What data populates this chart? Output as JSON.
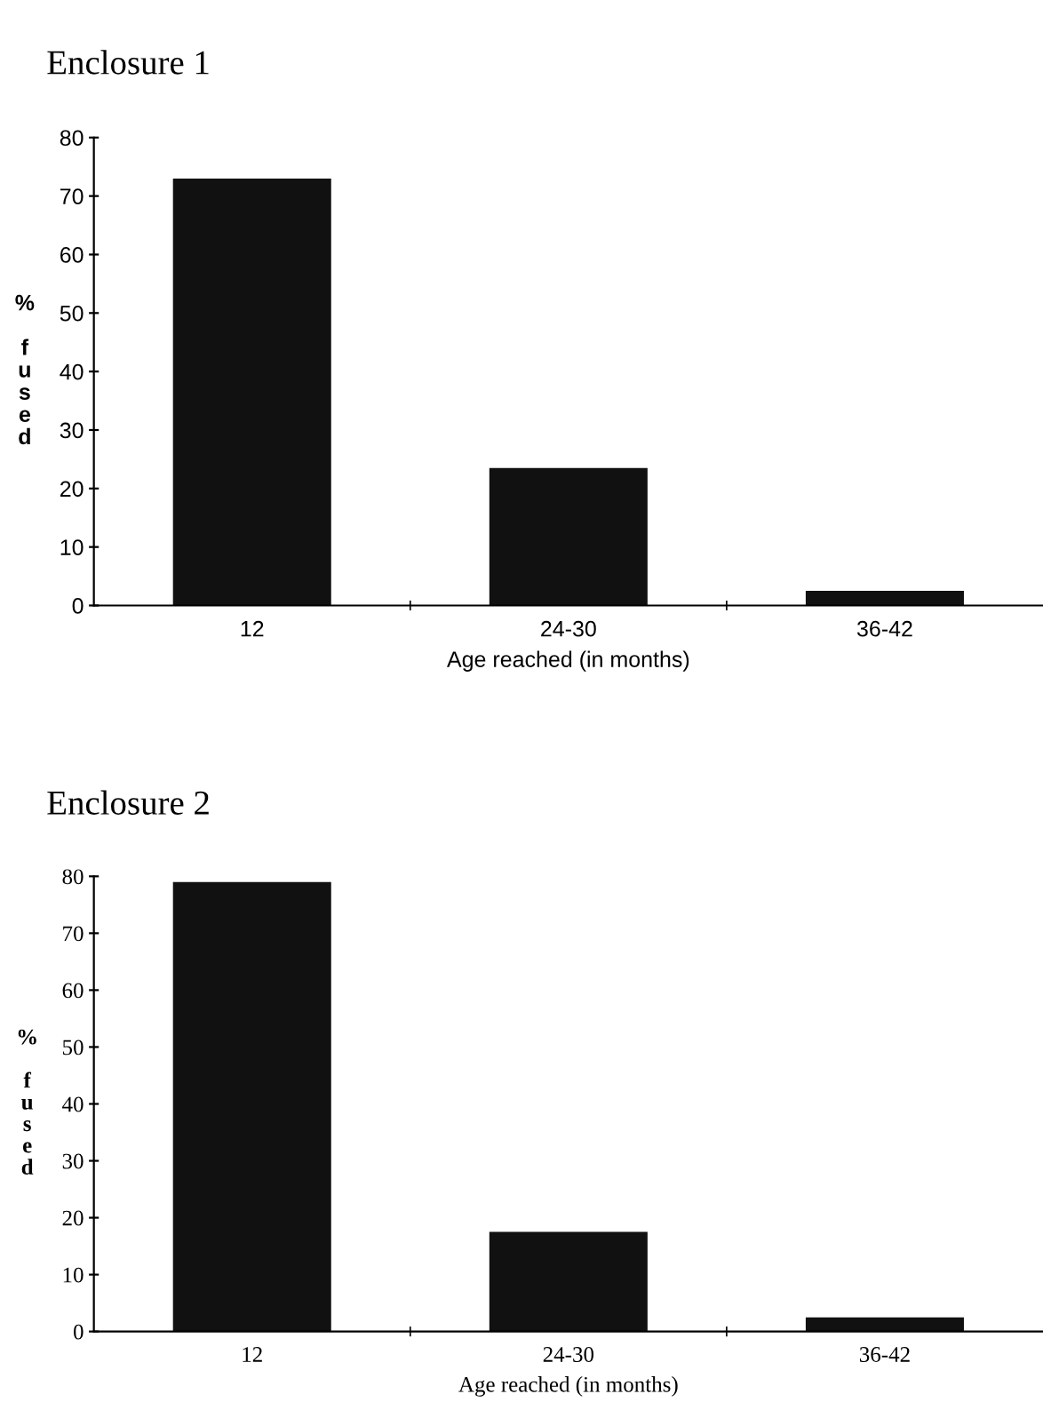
{
  "chart_data": [
    {
      "type": "bar",
      "title": "Enclosure 1",
      "xlabel": "Age reached (in months)",
      "ylabel": "% fused",
      "categories": [
        "12",
        "24-30",
        "36-42"
      ],
      "values": [
        73,
        23.5,
        2.5
      ],
      "color": "#111111",
      "ylim": [
        0,
        80
      ],
      "yticks": [
        0,
        10,
        20,
        30,
        40,
        50,
        60,
        70,
        80
      ],
      "grid": false
    },
    {
      "type": "bar",
      "title": "Enclosure 2",
      "xlabel": "Age reached (in months)",
      "ylabel": "% fused",
      "categories": [
        "12",
        "24-30",
        "36-42"
      ],
      "values": [
        79,
        17.5,
        2.5
      ],
      "color": "#111111",
      "ylim": [
        0,
        80
      ],
      "yticks": [
        0,
        10,
        20,
        30,
        40,
        50,
        60,
        70,
        80
      ],
      "grid": false
    }
  ]
}
